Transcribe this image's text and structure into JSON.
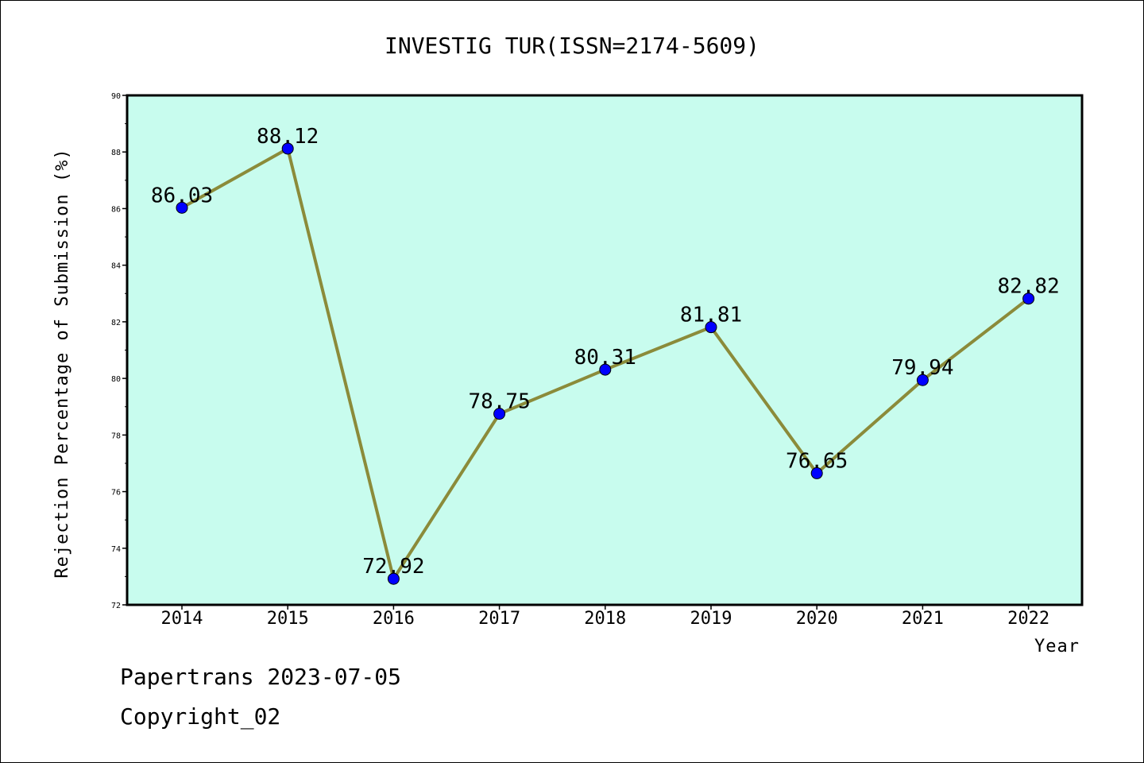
{
  "chart_data": {
    "type": "line",
    "title": "INVESTIG TUR(ISSN=2174-5609)",
    "xlabel": "Year",
    "ylabel": "Rejection Percentage of Submission (%)",
    "categories": [
      "2014",
      "2015",
      "2016",
      "2017",
      "2018",
      "2019",
      "2020",
      "2021",
      "2022"
    ],
    "series": [
      {
        "values": [
          86.03,
          88.12,
          72.92,
          78.75,
          80.31,
          81.81,
          76.65,
          79.94,
          82.82
        ],
        "labels": [
          "86.03",
          "88.12",
          "72.92",
          "78.75",
          "80.31",
          "81.81",
          "76.65",
          "79.94",
          "82.82"
        ]
      }
    ],
    "ylim": [
      72,
      90
    ],
    "yticks": [
      "72",
      "74",
      "76",
      "78",
      "80",
      "82",
      "84",
      "86",
      "88",
      "90"
    ],
    "grid": false,
    "colors": {
      "plot_background": "#c8fcee",
      "line": "#8b8b3a",
      "marker": "#0000ff"
    }
  },
  "footer": {
    "line1": "Papertrans 2023-07-05",
    "line2": "Copyright_02"
  }
}
